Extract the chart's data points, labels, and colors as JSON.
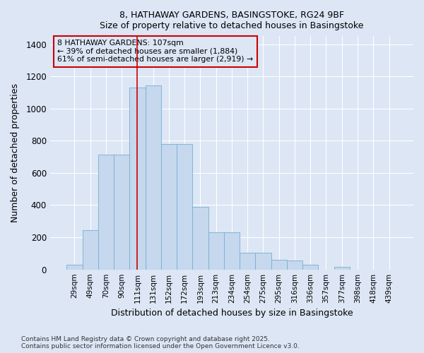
{
  "title_line1": "8, HATHAWAY GARDENS, BASINGSTOKE, RG24 9BF",
  "title_line2": "Size of property relative to detached houses in Basingstoke",
  "xlabel": "Distribution of detached houses by size in Basingstoke",
  "ylabel": "Number of detached properties",
  "categories": [
    "29sqm",
    "49sqm",
    "70sqm",
    "90sqm",
    "111sqm",
    "131sqm",
    "152sqm",
    "172sqm",
    "193sqm",
    "213sqm",
    "234sqm",
    "254sqm",
    "275sqm",
    "295sqm",
    "316sqm",
    "336sqm",
    "357sqm",
    "377sqm",
    "398sqm",
    "418sqm",
    "439sqm"
  ],
  "values": [
    30,
    245,
    715,
    715,
    1130,
    1145,
    780,
    780,
    390,
    230,
    230,
    105,
    105,
    60,
    55,
    30,
    0,
    15,
    0,
    0,
    0
  ],
  "bar_color": "#c5d8ed",
  "bar_edge_color": "#7aadcf",
  "bg_color": "#dce6f5",
  "grid_color": "#ffffff",
  "vline_color": "#cc0000",
  "vline_pos": 4.5,
  "annotation_text": "8 HATHAWAY GARDENS: 107sqm\n← 39% of detached houses are smaller (1,884)\n61% of semi-detached houses are larger (2,919) →",
  "annotation_box_color": "#cc0000",
  "ylim": [
    0,
    1450
  ],
  "yticks": [
    0,
    200,
    400,
    600,
    800,
    1000,
    1200,
    1400
  ],
  "footer_line1": "Contains HM Land Registry data © Crown copyright and database right 2025.",
  "footer_line2": "Contains public sector information licensed under the Open Government Licence v3.0."
}
